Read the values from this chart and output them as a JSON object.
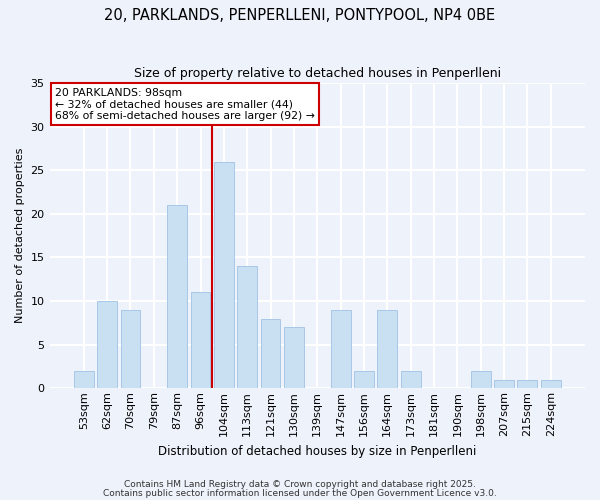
{
  "title": "20, PARKLANDS, PENPERLLENI, PONTYPOOL, NP4 0BE",
  "subtitle": "Size of property relative to detached houses in Penperlleni",
  "xlabel": "Distribution of detached houses by size in Penperlleni",
  "ylabel": "Number of detached properties",
  "bar_labels": [
    "53sqm",
    "62sqm",
    "70sqm",
    "79sqm",
    "87sqm",
    "96sqm",
    "104sqm",
    "113sqm",
    "121sqm",
    "130sqm",
    "139sqm",
    "147sqm",
    "156sqm",
    "164sqm",
    "173sqm",
    "181sqm",
    "190sqm",
    "198sqm",
    "207sqm",
    "215sqm",
    "224sqm"
  ],
  "bar_values": [
    2,
    10,
    9,
    0,
    21,
    11,
    26,
    14,
    8,
    7,
    0,
    9,
    2,
    9,
    2,
    0,
    0,
    2,
    1,
    1,
    1
  ],
  "bar_color": "#c9dff2",
  "bar_edgecolor": "#a8c8e8",
  "background_color": "#eef2fb",
  "grid_color": "#ffffff",
  "ylim": [
    0,
    35
  ],
  "yticks": [
    0,
    5,
    10,
    15,
    20,
    25,
    30,
    35
  ],
  "vline_x_index": 5.5,
  "vline_color": "#cc0000",
  "annotation_title": "20 PARKLANDS: 98sqm",
  "annotation_line1": "← 32% of detached houses are smaller (44)",
  "annotation_line2": "68% of semi-detached houses are larger (92) →",
  "annotation_box_facecolor": "#ffffff",
  "annotation_box_edgecolor": "#cc0000",
  "footer1": "Contains HM Land Registry data © Crown copyright and database right 2025.",
  "footer2": "Contains public sector information licensed under the Open Government Licence v3.0."
}
